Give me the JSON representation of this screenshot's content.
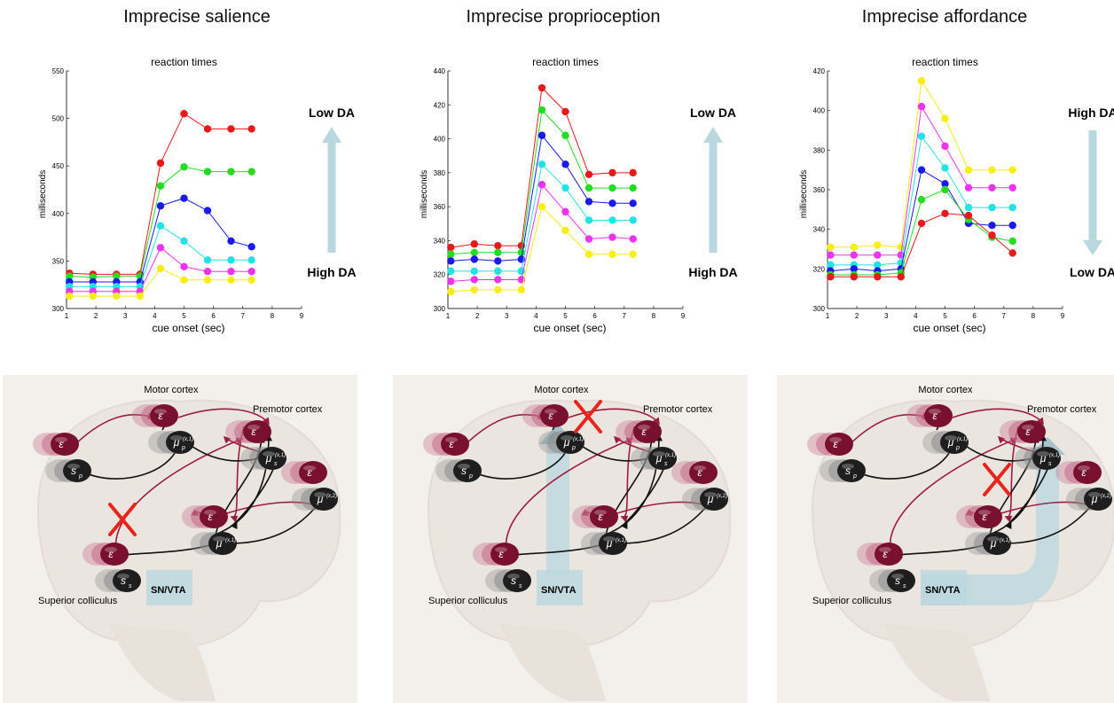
{
  "panels": [
    {
      "title": "Imprecise salience"
    },
    {
      "title": "Imprecise proprioception"
    },
    {
      "title": "Imprecise affordance"
    }
  ],
  "chart_data": [
    {
      "type": "line",
      "title": "reaction times",
      "xlabel": "cue onset (sec)",
      "ylabel": "milliseconds",
      "xlim": [
        1,
        9
      ],
      "ylim": [
        300,
        550
      ],
      "yticks": [
        300,
        350,
        400,
        450,
        500,
        550
      ],
      "xticks": [
        1,
        2,
        3,
        4,
        5,
        6,
        7,
        8,
        9
      ],
      "x": [
        1.1,
        1.9,
        2.7,
        3.5,
        4.2,
        5.0,
        5.8,
        6.6,
        7.3
      ],
      "series": [
        {
          "color": "#e8191b",
          "values": [
            337,
            336,
            336,
            336,
            453,
            505,
            489,
            489,
            489
          ]
        },
        {
          "color": "#22dd22",
          "values": [
            334,
            333,
            334,
            334,
            429,
            449,
            444,
            444,
            444
          ]
        },
        {
          "color": "#1a1aee",
          "values": [
            328,
            328,
            328,
            328,
            408,
            416,
            403,
            371,
            365
          ]
        },
        {
          "color": "#22e2e6",
          "values": [
            323,
            323,
            323,
            323,
            387,
            371,
            351,
            351,
            351
          ]
        },
        {
          "color": "#ee33ee",
          "values": [
            318,
            318,
            318,
            318,
            364,
            344,
            339,
            339,
            339
          ]
        },
        {
          "color": "#f6ee14",
          "values": [
            313,
            313,
            313,
            313,
            342,
            330,
            330,
            330,
            330
          ]
        }
      ],
      "annotation_top": "Low DA",
      "annotation_bottom": "High DA",
      "arrow_direction": "up"
    },
    {
      "type": "line",
      "title": "reaction times",
      "xlabel": "cue onset (sec)",
      "ylabel": "milliseconds",
      "xlim": [
        1,
        9
      ],
      "ylim": [
        300,
        440
      ],
      "yticks": [
        300,
        320,
        340,
        360,
        380,
        400,
        420,
        440
      ],
      "xticks": [
        1,
        2,
        3,
        4,
        5,
        6,
        7,
        8,
        9
      ],
      "x": [
        1.1,
        1.9,
        2.7,
        3.5,
        4.2,
        5.0,
        5.8,
        6.6,
        7.3
      ],
      "series": [
        {
          "color": "#e8191b",
          "values": [
            336,
            338,
            337,
            337,
            430,
            416,
            379,
            380,
            380
          ]
        },
        {
          "color": "#22dd22",
          "values": [
            332,
            333,
            333,
            333,
            417,
            402,
            371,
            371,
            371
          ]
        },
        {
          "color": "#1a1aee",
          "values": [
            328,
            329,
            328,
            329,
            402,
            385,
            363,
            362,
            362
          ]
        },
        {
          "color": "#22e2e6",
          "values": [
            322,
            322,
            322,
            322,
            385,
            371,
            352,
            352,
            352
          ]
        },
        {
          "color": "#ee33ee",
          "values": [
            316,
            317,
            317,
            317,
            373,
            357,
            341,
            342,
            341
          ]
        },
        {
          "color": "#f6ee14",
          "values": [
            310,
            311,
            311,
            311,
            360,
            346,
            332,
            332,
            332
          ]
        }
      ],
      "annotation_top": "Low DA",
      "annotation_bottom": "High DA",
      "arrow_direction": "up"
    },
    {
      "type": "line",
      "title": "reaction times",
      "xlabel": "cue onset (sec)",
      "ylabel": "milliseconds",
      "xlim": [
        1,
        9
      ],
      "ylim": [
        300,
        420
      ],
      "yticks": [
        300,
        320,
        340,
        360,
        380,
        400,
        420
      ],
      "xticks": [
        1,
        2,
        3,
        4,
        5,
        6,
        7,
        8,
        9
      ],
      "x": [
        1.1,
        1.9,
        2.7,
        3.5,
        4.2,
        5.0,
        5.8,
        6.6,
        7.3
      ],
      "series": [
        {
          "color": "#f6ee14",
          "values": [
            331,
            331,
            332,
            331,
            415,
            396,
            370,
            370,
            370
          ]
        },
        {
          "color": "#ee33ee",
          "values": [
            327,
            327,
            327,
            327,
            402,
            382,
            361,
            361,
            361
          ]
        },
        {
          "color": "#22e2e6",
          "values": [
            322,
            322,
            322,
            323,
            387,
            371,
            351,
            351,
            351
          ]
        },
        {
          "color": "#1a1aee",
          "values": [
            319,
            320,
            319,
            320,
            370,
            363,
            343,
            342,
            342
          ]
        },
        {
          "color": "#22dd22",
          "values": [
            317,
            317,
            317,
            318,
            355,
            360,
            345,
            336,
            334
          ]
        },
        {
          "color": "#e8191b",
          "values": [
            316,
            316,
            316,
            316,
            343,
            348,
            347,
            337,
            328
          ]
        }
      ],
      "annotation_top": "High DA",
      "annotation_bottom": "Low DA",
      "arrow_direction": "down"
    }
  ],
  "diagrams": [
    {
      "motor_cortex": "Motor cortex",
      "premotor_cortex": "Premotor cortex",
      "superior_colliculus": "Superior colliculus",
      "sn_vta": "SN/VTA",
      "cross_location": "salience",
      "dopamine_arrow": false
    },
    {
      "motor_cortex": "Motor cortex",
      "premotor_cortex": "Premotor cortex",
      "superior_colliculus": "Superior colliculus",
      "sn_vta": "SN/VTA",
      "cross_location": "proprioception",
      "dopamine_arrow": true
    },
    {
      "motor_cortex": "Motor cortex",
      "premotor_cortex": "Premotor cortex",
      "superior_colliculus": "Superior colliculus",
      "sn_vta": "SN/VTA",
      "cross_location": "affordance",
      "dopamine_arrow": true
    }
  ],
  "symbols": {
    "epsilon": "ε",
    "mu": "μ",
    "s_p": "s",
    "sub_p": "p",
    "sub_s": "s",
    "sup_x1": "(x,1)",
    "sup_x2": "(x,2)"
  },
  "colors": {
    "error_node": "#7a1030",
    "state_node": "#1e1e1e",
    "connection": "#9b1c3c",
    "dopamine_arrow": "#bcd8de",
    "brain_bg": "#f3efea",
    "cross": "#e8241c"
  }
}
